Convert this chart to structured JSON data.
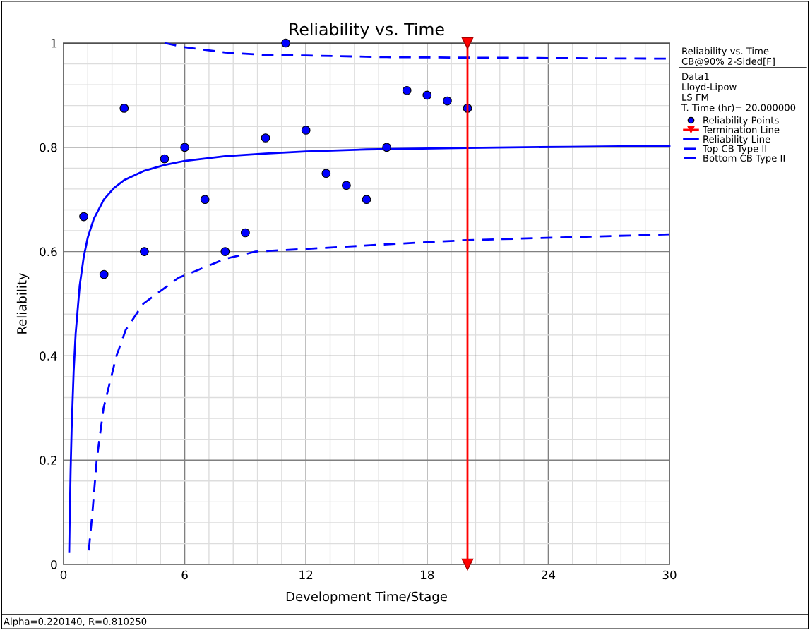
{
  "chart_data": {
    "type": "line",
    "title": "Reliability vs. Time",
    "xlabel": "Development Time/Stage",
    "ylabel": "Reliability",
    "xlim": [
      0,
      30
    ],
    "ylim": [
      0,
      1
    ],
    "xticks": [
      0,
      6,
      12,
      18,
      24,
      30
    ],
    "yticks": [
      0,
      0.2,
      0.4,
      0.6,
      0.8,
      1
    ],
    "grid": true,
    "legend": "right",
    "series": [
      {
        "name": "Reliability Points",
        "type": "scatter",
        "marker": "circle",
        "color": "#0000ff",
        "x": [
          1,
          2,
          3,
          4,
          5,
          6,
          7,
          8,
          9,
          10,
          11,
          12,
          13,
          14,
          15,
          16,
          17,
          18,
          19,
          20
        ],
        "values": [
          0.667,
          0.556,
          0.875,
          0.6,
          0.778,
          0.8,
          0.7,
          0.6,
          0.636,
          0.818,
          1.0,
          0.833,
          0.75,
          0.727,
          0.7,
          0.8,
          0.909,
          0.9,
          0.889,
          0.875
        ]
      },
      {
        "name": "Termination Line",
        "line_style": "solid",
        "marker": "triangle",
        "color": "#ff0000",
        "x": [
          20,
          20
        ],
        "values": [
          0,
          1
        ]
      },
      {
        "name": "Reliability Line",
        "line_style": "solid",
        "color": "#0000ff",
        "x": [
          0.28,
          0.3,
          0.35,
          0.4,
          0.5,
          0.6,
          0.8,
          1,
          1.2,
          1.5,
          2,
          2.5,
          3,
          4,
          5,
          6,
          8,
          10,
          12,
          15,
          20,
          25,
          30
        ],
        "values": [
          0.024,
          0.076,
          0.181,
          0.26,
          0.37,
          0.443,
          0.535,
          0.59,
          0.627,
          0.663,
          0.7,
          0.722,
          0.737,
          0.755,
          0.766,
          0.774,
          0.783,
          0.788,
          0.792,
          0.796,
          0.799,
          0.801,
          0.803
        ]
      },
      {
        "name": "Top CB Type II",
        "line_style": "dashed",
        "color": "#0000ff",
        "x": [
          5.0,
          6,
          8,
          10,
          12,
          16,
          20,
          30
        ],
        "values": [
          1.0,
          0.992,
          0.982,
          0.977,
          0.976,
          0.973,
          0.972,
          0.97
        ]
      },
      {
        "name": "Bottom CB Type II",
        "line_style": "dashed",
        "color": "#0000ff",
        "x": [
          1.25,
          1.43,
          1.64,
          1.98,
          2.62,
          3.08,
          3.95,
          5.7,
          6.05,
          8,
          9.5,
          12,
          16,
          20,
          30
        ],
        "values": [
          0.027,
          0.1,
          0.2,
          0.3,
          0.4,
          0.45,
          0.5,
          0.55,
          0.555,
          0.586,
          0.6,
          0.605,
          0.614,
          0.622,
          0.633
        ]
      }
    ],
    "annotations": [
      "Reliability vs. Time",
      "CB@90% 2-Sided[F]",
      "Data1",
      "Lloyd-Lipow",
      "LS FM",
      "T. Time (hr)= 20.000000",
      "Alpha=0.220140, R=0.810250"
    ]
  }
}
